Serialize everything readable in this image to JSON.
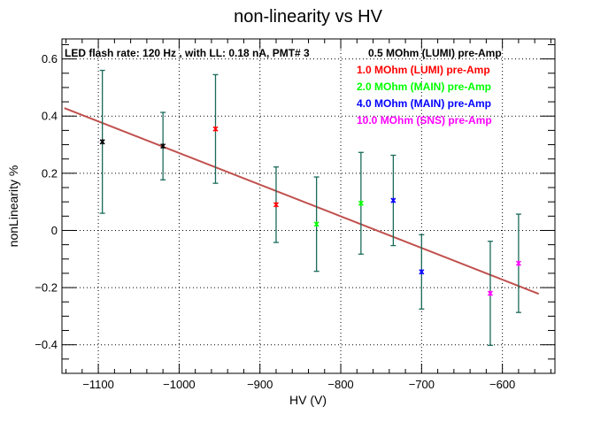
{
  "chart_data": {
    "type": "scatter",
    "title": "non-linearity vs HV",
    "xlabel": "HV (V)",
    "ylabel": "nonLinearity %",
    "xlim": [
      -1145,
      -535
    ],
    "ylim": [
      -0.5,
      0.67
    ],
    "x_ticks": [
      -1100,
      -1000,
      -900,
      -800,
      -700,
      -600
    ],
    "y_ticks": [
      -0.4,
      -0.2,
      0,
      0.2,
      0.4,
      0.6
    ],
    "x_tick_labels": [
      "−1100",
      "−1000",
      "−900",
      "−800",
      "−700",
      "−600"
    ],
    "y_tick_labels": [
      "−0.4",
      "−0.2",
      "0",
      "0.2",
      "0.4",
      "0.6"
    ],
    "grid": true,
    "annotation": "LED flash rate: 120 Hz , with LL: 0.18 nA, PMT# 3",
    "legend_position": "top-right",
    "series": [
      {
        "name": "0.5 MOhm (LUMI) pre-Amp",
        "color": "#000000",
        "points": [
          {
            "x": -1095,
            "y": 0.31,
            "err": 0.25
          },
          {
            "x": -1020,
            "y": 0.295,
            "err": 0.118
          }
        ]
      },
      {
        "name": "1.0 MOhm (LUMI) pre-Amp",
        "color": "#ff0000",
        "points": [
          {
            "x": -955,
            "y": 0.355,
            "err": 0.19
          },
          {
            "x": -880,
            "y": 0.09,
            "err": 0.132
          }
        ]
      },
      {
        "name": "2.0 MOhm (MAIN) pre-Amp",
        "color": "#00ff00",
        "points": [
          {
            "x": -830,
            "y": 0.022,
            "err": 0.165
          },
          {
            "x": -775,
            "y": 0.095,
            "err": 0.178
          }
        ]
      },
      {
        "name": "4.0 MOhm (MAIN) pre-Amp",
        "color": "#0000ff",
        "points": [
          {
            "x": -735,
            "y": 0.105,
            "err": 0.158
          },
          {
            "x": -700,
            "y": -0.145,
            "err": 0.13
          }
        ]
      },
      {
        "name": "10.0 MOhm (SNS) pre-Amp",
        "color": "#ff00ff",
        "points": [
          {
            "x": -615,
            "y": -0.22,
            "err": 0.182
          },
          {
            "x": -580,
            "y": -0.115,
            "err": 0.172
          }
        ]
      }
    ],
    "errorbar_color": "#1a6b5a",
    "fit_line": {
      "color": "#c0504d",
      "x": [
        -1142,
        -555
      ],
      "y": [
        0.428,
        -0.222
      ]
    }
  }
}
